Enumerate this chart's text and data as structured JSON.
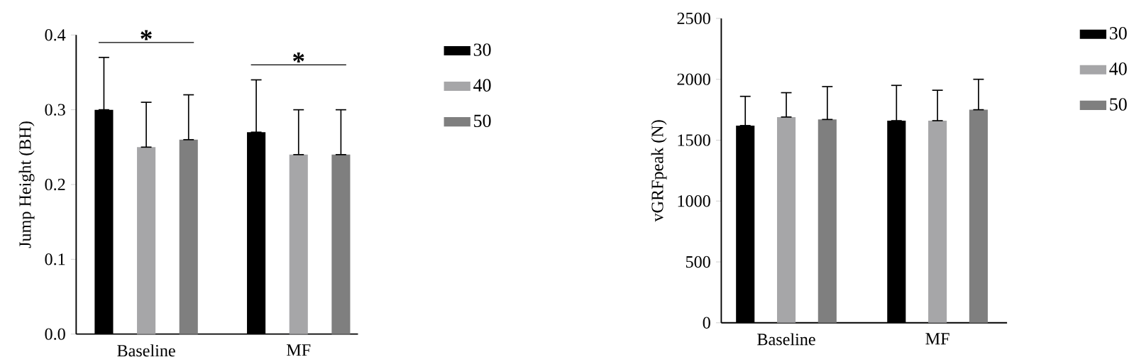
{
  "chart_data": [
    {
      "type": "bar",
      "ylabel": "Jump Height (BH)",
      "categories": [
        "Baseline",
        "MF"
      ],
      "series": [
        {
          "name": "30",
          "color": "#000000",
          "values": [
            0.3,
            0.27
          ],
          "errors": [
            [
              0.3,
              0.37
            ],
            [
              0.27,
              0.34
            ]
          ]
        },
        {
          "name": "40",
          "color": "#a6a6a8",
          "values": [
            0.25,
            0.24
          ],
          "errors": [
            [
              0.25,
              0.31
            ],
            [
              0.24,
              0.3
            ]
          ]
        },
        {
          "name": "50",
          "color": "#7f7f7f",
          "values": [
            0.26,
            0.24
          ],
          "errors": [
            [
              0.26,
              0.32
            ],
            [
              0.24,
              0.3
            ]
          ]
        }
      ],
      "ylim": [
        0,
        0.4
      ],
      "yticks": [
        {
          "value": 0,
          "label": "0.0"
        },
        {
          "value": 0.1,
          "label": "0.1"
        },
        {
          "value": 0.2,
          "label": "0.2"
        },
        {
          "value": 0.3,
          "label": "0.3"
        },
        {
          "value": 0.4,
          "label": "0.4"
        }
      ],
      "annotations": [
        "*",
        "*"
      ],
      "legend": "right",
      "grid": false
    },
    {
      "type": "bar",
      "ylabel": "vGRFpeak (N)",
      "categories": [
        "Baseline",
        "MF"
      ],
      "series": [
        {
          "name": "30",
          "color": "#000000",
          "values": [
            1620,
            1660
          ],
          "errors": [
            [
              1620,
              1860
            ],
            [
              1660,
              1950
            ]
          ]
        },
        {
          "name": "40",
          "color": "#a6a6a8",
          "values": [
            1690,
            1660
          ],
          "errors": [
            [
              1690,
              1890
            ],
            [
              1660,
              1910
            ]
          ]
        },
        {
          "name": "50",
          "color": "#7f7f7f",
          "values": [
            1670,
            1750
          ],
          "errors": [
            [
              1670,
              1940
            ],
            [
              1750,
              2000
            ]
          ]
        }
      ],
      "ylim": [
        0,
        2500
      ],
      "yticks": [
        0,
        500,
        1000,
        1500,
        2000,
        2500
      ],
      "legend": "right",
      "grid": false
    }
  ]
}
